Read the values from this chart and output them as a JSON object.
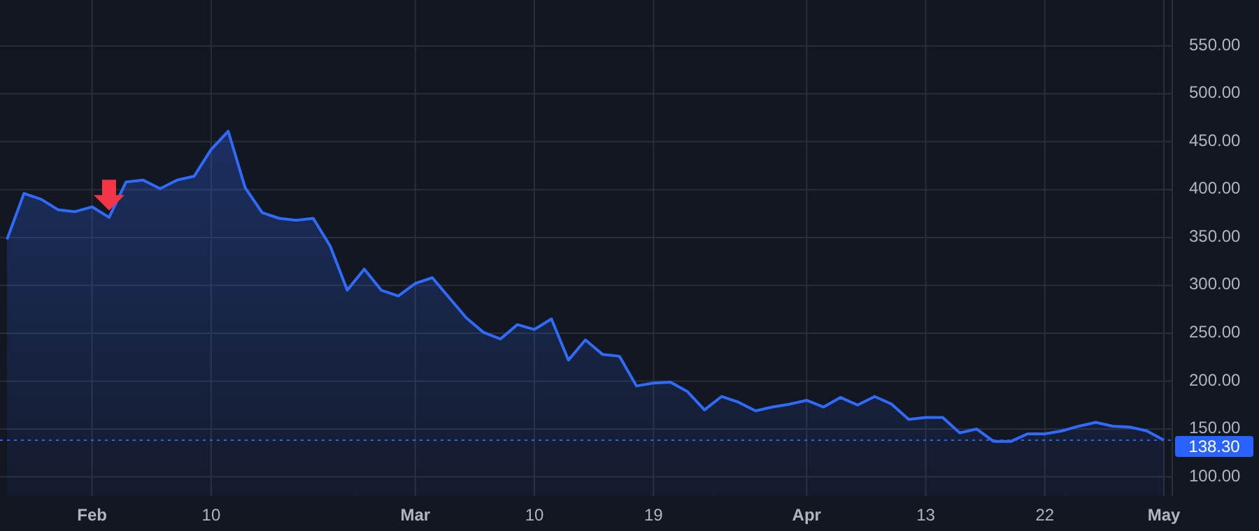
{
  "chart_data": {
    "type": "area",
    "categories": [
      null,
      null,
      null,
      null,
      null,
      "Feb",
      null,
      null,
      null,
      null,
      null,
      null,
      "10",
      null,
      null,
      null,
      null,
      null,
      null,
      null,
      null,
      null,
      null,
      null,
      "Mar",
      null,
      null,
      null,
      null,
      null,
      null,
      "10",
      null,
      null,
      null,
      null,
      null,
      null,
      "19",
      null,
      null,
      null,
      null,
      null,
      null,
      null,
      null,
      "Apr",
      null,
      null,
      null,
      null,
      null,
      null,
      "13",
      null,
      null,
      null,
      null,
      null,
      null,
      "22",
      null,
      null,
      null,
      null,
      null,
      null,
      "May"
    ],
    "series": [
      {
        "color": "#2f6bff",
        "values": [
          348,
          396,
          390,
          379,
          377,
          382,
          371,
          408,
          410,
          401,
          410,
          414,
          442,
          461,
          402,
          376,
          370,
          368,
          370,
          341,
          295,
          317,
          295,
          289,
          302,
          308,
          287,
          266,
          251,
          244,
          259,
          254,
          265,
          222,
          243,
          228,
          226,
          195,
          198,
          199,
          189,
          170,
          184,
          178,
          169,
          173,
          176,
          180,
          173,
          183,
          175,
          184,
          176,
          160,
          162,
          162,
          146,
          150,
          137,
          137,
          145,
          145,
          148,
          153,
          157,
          153,
          152,
          148,
          138.3
        ]
      }
    ],
    "ylim": [
      80,
      598
    ],
    "yticks": [
      {
        "value": 100,
        "label": "100.00"
      },
      {
        "value": 150,
        "label": "150.00"
      },
      {
        "value": 200,
        "label": "200.00"
      },
      {
        "value": 250,
        "label": "250.00"
      },
      {
        "value": 300,
        "label": "300.00"
      },
      {
        "value": 350,
        "label": "350.00"
      },
      {
        "value": 400,
        "label": "400.00"
      },
      {
        "value": 450,
        "label": "450.00"
      },
      {
        "value": 500,
        "label": "500.00"
      },
      {
        "value": 550,
        "label": "550.00"
      }
    ],
    "grid": true,
    "ref_lines": [
      {
        "axis": "y",
        "value": 138.3,
        "label": "138.30",
        "color": "#2962ff",
        "line_style": "dotted"
      }
    ]
  }
}
